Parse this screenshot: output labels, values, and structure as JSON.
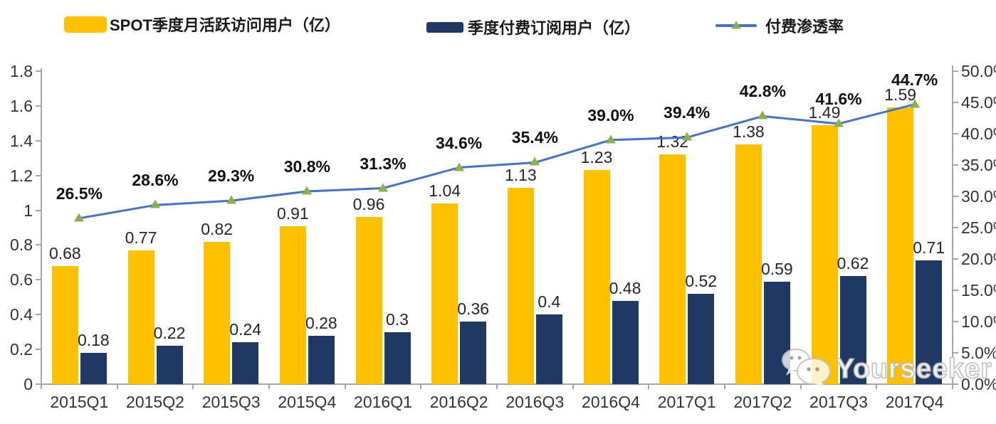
{
  "colors": {
    "mau_bar": "#FFC000",
    "sub_bar": "#1F3864",
    "line": "#4472C4",
    "marker": "#8FAE4F",
    "axis": "#a6a6a6"
  },
  "legend": {
    "mau_label": "SPOT季度月活跃访问用户（亿）",
    "sub_label": "季度付费订阅用户（亿）",
    "pen_label": "付费渗透率"
  },
  "watermark": {
    "icon": "wechat-bubbles-icon",
    "text": "Yourseeker"
  },
  "chart_data": {
    "type": "bar",
    "subtype": "grouped-bars-with-line",
    "categories": [
      "2015Q1",
      "2015Q2",
      "2015Q3",
      "2015Q4",
      "2016Q1",
      "2016Q2",
      "2016Q3",
      "2016Q4",
      "2017Q1",
      "2017Q2",
      "2017Q3",
      "2017Q4"
    ],
    "series": [
      {
        "name": "SPOT季度月活跃访问用户（亿）",
        "type": "bar",
        "axis": "left",
        "values": [
          0.68,
          0.77,
          0.82,
          0.91,
          0.96,
          1.04,
          1.13,
          1.23,
          1.32,
          1.38,
          1.49,
          1.59
        ]
      },
      {
        "name": "季度付费订阅用户（亿）",
        "type": "bar",
        "axis": "left",
        "values": [
          0.18,
          0.22,
          0.24,
          0.28,
          0.3,
          0.36,
          0.4,
          0.48,
          0.52,
          0.59,
          0.62,
          0.71
        ]
      },
      {
        "name": "付费渗透率",
        "type": "line",
        "axis": "right",
        "values": [
          26.5,
          28.6,
          29.3,
          30.8,
          31.3,
          34.6,
          35.4,
          39.0,
          39.4,
          42.8,
          41.6,
          44.7
        ],
        "labels": [
          "26.5%",
          "28.6%",
          "29.3%",
          "30.8%",
          "31.3%",
          "34.6%",
          "35.4%",
          "39.0%",
          "39.4%",
          "42.8%",
          "41.6%",
          "44.7%"
        ]
      }
    ],
    "left_axis": {
      "min": 0,
      "max": 1.8,
      "step": 0.2,
      "ticks": [
        0,
        0.2,
        0.4,
        0.6,
        0.8,
        1,
        1.2,
        1.4,
        1.6,
        1.8
      ]
    },
    "right_axis": {
      "min": 0,
      "max": 50,
      "step": 5,
      "format": "percent",
      "ticks": [
        0,
        5,
        10,
        15,
        20,
        25,
        30,
        35,
        40,
        45,
        50
      ],
      "tick_labels": [
        "0.0%",
        "5.0%",
        "10.0%",
        "15.0%",
        "20.0%",
        "25.0%",
        "30.0%",
        "35.0%",
        "40.0%",
        "45.0%",
        "50.0%"
      ]
    },
    "grid": false,
    "legend_position": "top",
    "data_labels": true
  }
}
